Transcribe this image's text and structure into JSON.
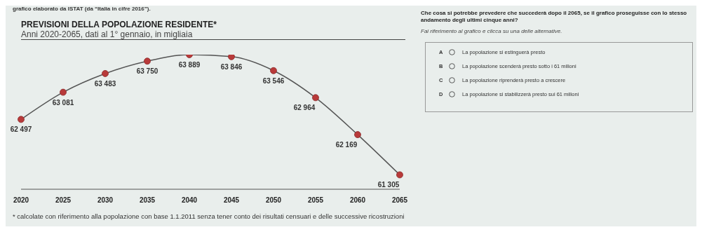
{
  "chart_data": {
    "type": "line",
    "title": "PREVISIONI DELLA POPOLAZIONE RESIDENTE*",
    "subtitle": "Anni 2020-2065, dati al 1° gennaio, in migliaia",
    "categories": [
      "2020",
      "2025",
      "2030",
      "2035",
      "2040",
      "2045",
      "2050",
      "2055",
      "2060",
      "2065"
    ],
    "series": [
      {
        "color": "#b83a3a",
        "values": [
          62497,
          63081,
          63483,
          63750,
          63889,
          63846,
          63546,
          62964,
          62169,
          61305
        ]
      }
    ],
    "data_labels": true,
    "marker": "circle",
    "grid": false,
    "legend": false,
    "annotations": [
      "grafico elaborato da ISTAT (da “Italia in cifre 2016”).",
      "Che cosa si potrebbe prevedere che succederà dopo il 2065, se il grafico proseguisse con lo stesso andamento degli ultimi cinque anni?",
      "Fai riferimento al grafico e clicca su una delle alternative.",
      "A",
      "La popolazione si estinguerà presto",
      "B",
      "La popolazione scenderà presto sotto i 61 milioni",
      "C",
      "La popolazione riprenderà presto a crescere",
      "D",
      "La popolazione si stabilizzerà presto sui 61 milioni",
      "* calcolate con riferimento alla popolazione con base 1.1.2011 senza tener conto dei risultati censuari e delle successive ricostruzioni"
    ]
  }
}
